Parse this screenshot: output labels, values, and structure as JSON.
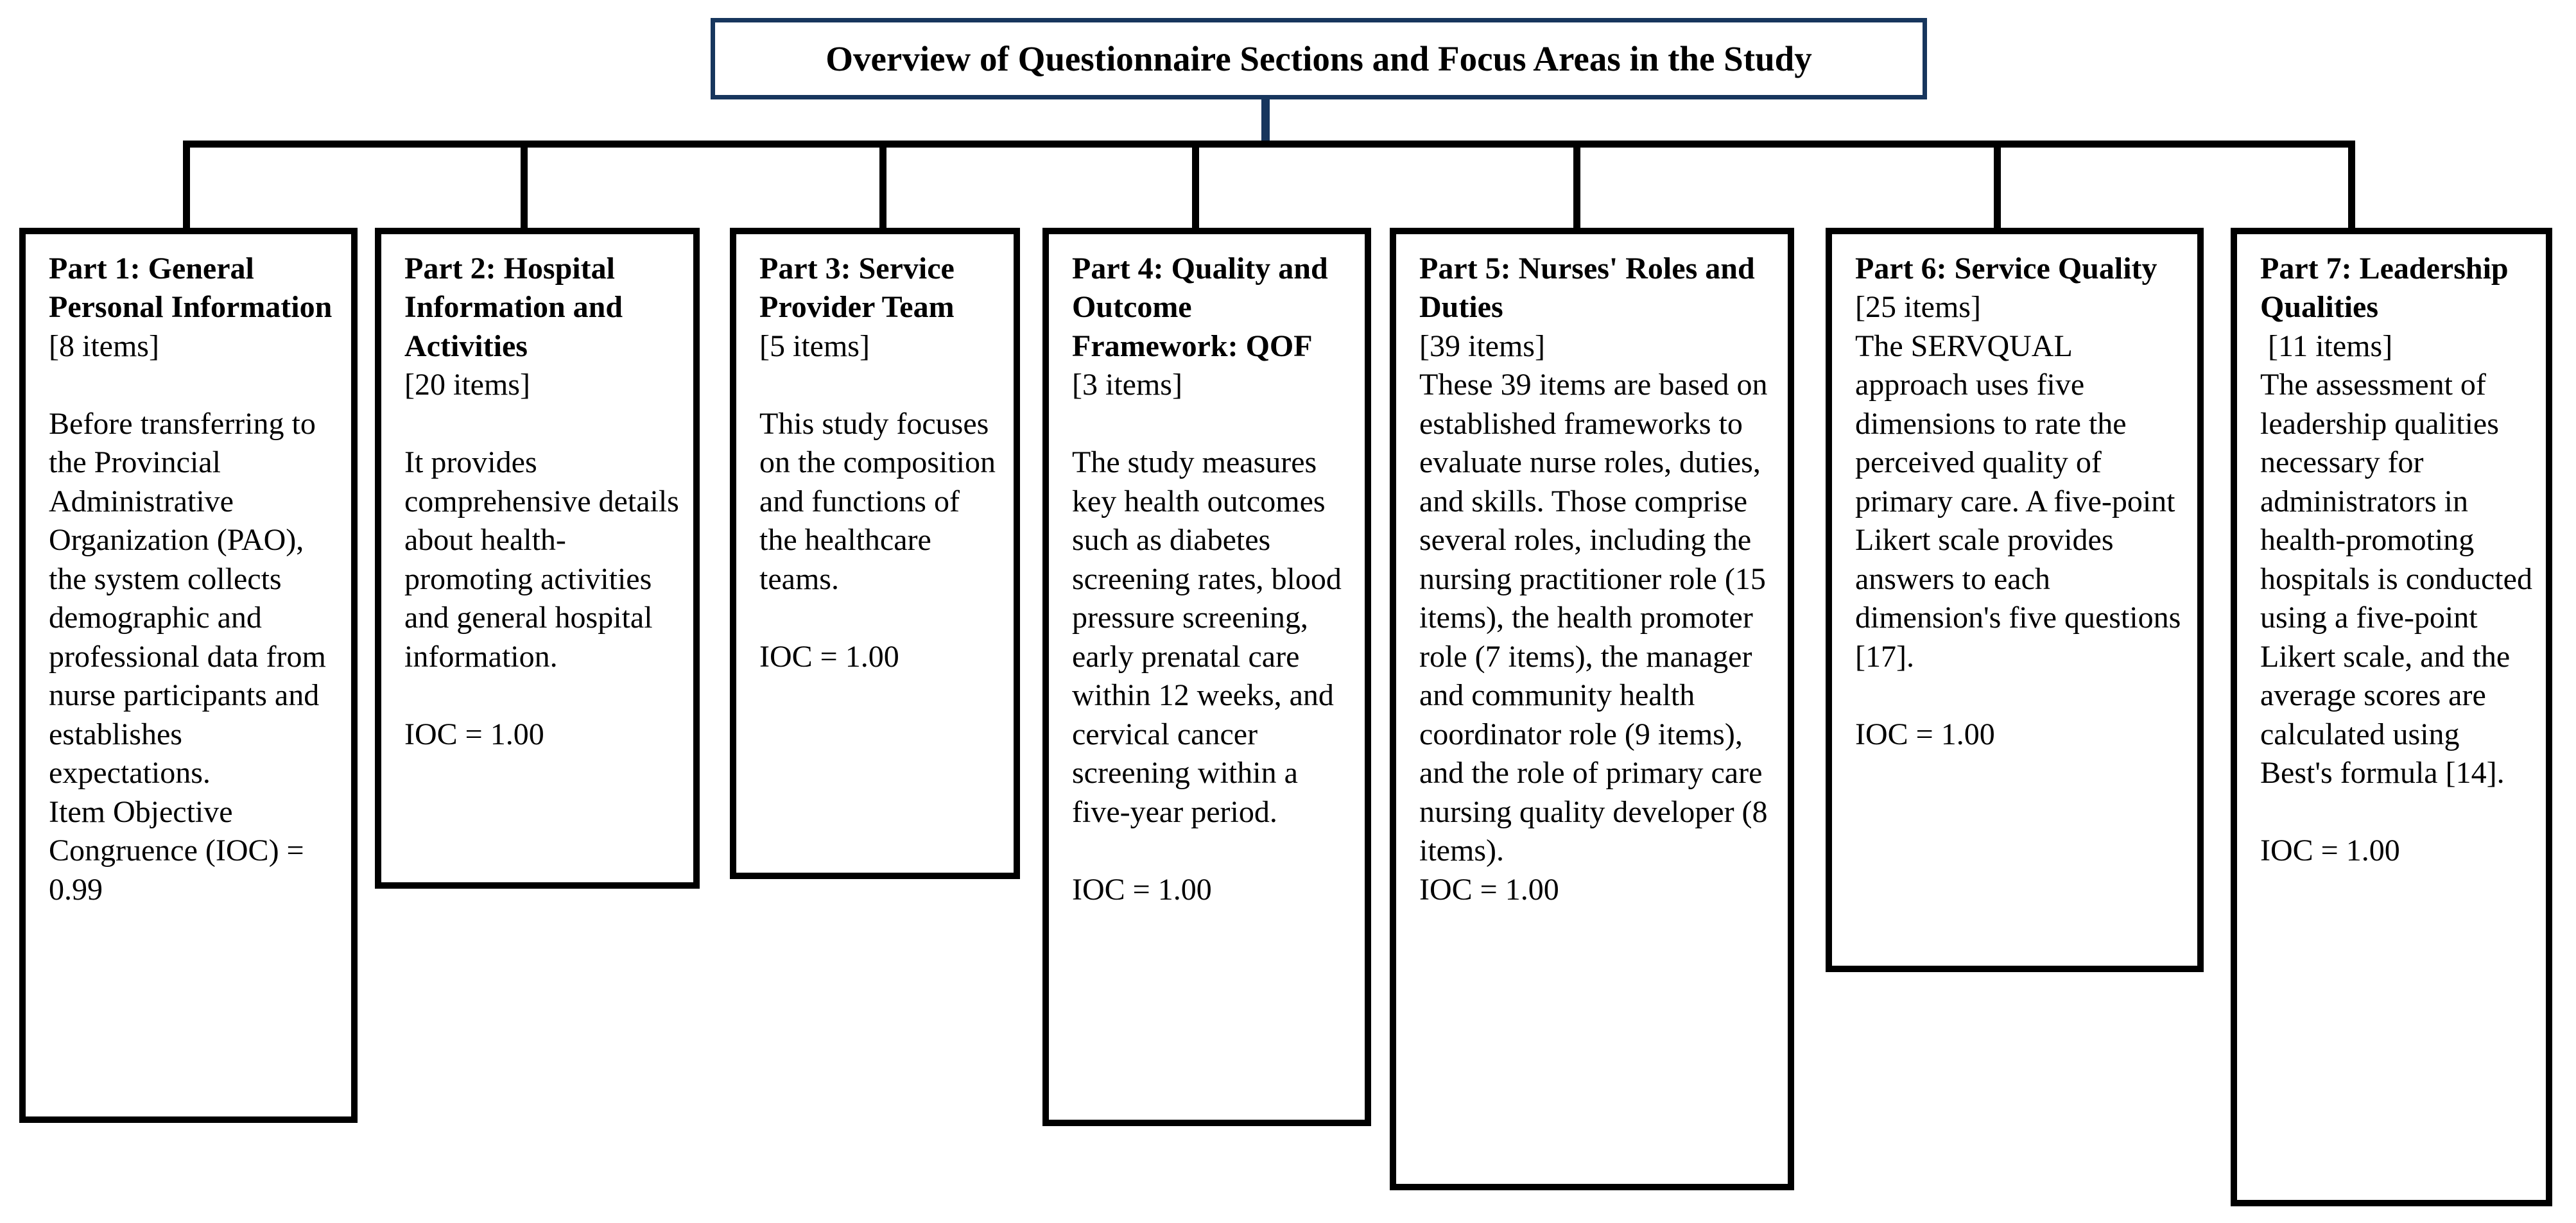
{
  "diagram_title": "Overview of Questionnaire Sections and Focus Areas in the Study",
  "colors": {
    "accent_navy": "#17365d",
    "line_black": "#000000",
    "background": "#ffffff"
  },
  "parts": [
    {
      "heading": "Part 1: General Personal Information",
      "body": "[8 items]\n\nBefore transferring to the Provincial Administrative Organization (PAO), the system collects demographic and professional data from nurse participants and establishes expectations.\nItem Objective Congruence (IOC) = 0.99"
    },
    {
      "heading": "Part 2: Hospital Information and Activities",
      "body": "[20 items]\n\nIt provides comprehensive details about health-promoting activities and general hospital information.\n\nIOC = 1.00"
    },
    {
      "heading": "Part 3: Service Provider Team",
      "body": "[5 items]\n\nThis study focuses on the composition and functions of the healthcare teams.\n\nIOC = 1.00"
    },
    {
      "heading": "Part 4: Quality and Outcome Framework: QOF",
      "body": "[3 items]\n\nThe study measures key health outcomes such as diabetes screening rates, blood pressure screening, early prenatal care within 12 weeks, and cervical cancer screening within a five-year period.\n\nIOC = 1.00"
    },
    {
      "heading": "Part 5: Nurses' Roles and Duties",
      "body": "[39 items]\nThese 39 items are based on established frameworks to evaluate nurse roles, duties, and skills. Those comprise several roles, including the nursing practitioner role (15 items), the health promoter role (7 items), the manager and community health coordinator role (9 items), and the role of primary care nursing quality developer (8 items).\nIOC = 1.00"
    },
    {
      "heading": "Part 6: Service Quality",
      "body": "[25 items]\nThe SERVQUAL approach uses five dimensions to rate the perceived quality of primary care. A five-point Likert scale provides answers to each dimension's five questions [17].\n\nIOC = 1.00"
    },
    {
      "heading": "Part 7: Leadership Qualities",
      "body": " [11 items]\nThe assessment of leadership qualities necessary for administrators in health-promoting hospitals is conducted using a five-point Likert scale, and the average scores are calculated using Best's formula [14].\n\nIOC = 1.00"
    }
  ]
}
